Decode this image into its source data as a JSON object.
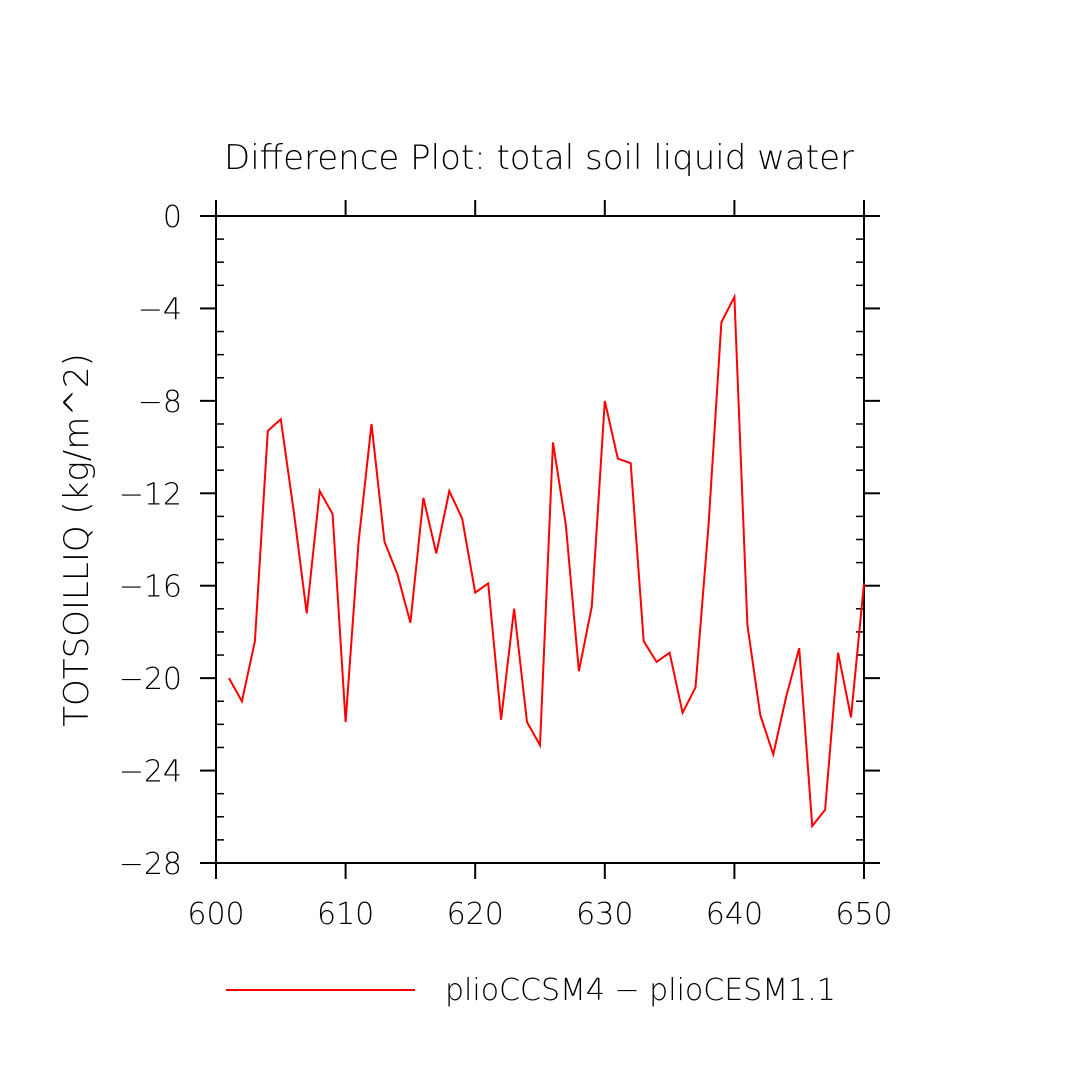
{
  "chart_data": {
    "type": "line",
    "title": "Difference Plot: total soil liquid water",
    "xlabel": "",
    "ylabel": "TOTSOILLIQ   (kg/m^2)",
    "xlim": [
      600,
      650
    ],
    "ylim": [
      -28,
      0
    ],
    "x_ticks": [
      600,
      610,
      620,
      630,
      640,
      650
    ],
    "x_tick_labels": [
      "600",
      "610",
      "620",
      "630",
      "640",
      "650"
    ],
    "y_ticks": [
      0,
      -4,
      -8,
      -12,
      -16,
      -20,
      -24,
      -28
    ],
    "y_tick_labels": [
      "0",
      "−4",
      "−8",
      "−12",
      "−16",
      "−20",
      "−24",
      "−28"
    ],
    "grid": false,
    "legend_position": "bottom",
    "series": [
      {
        "name": "plioCCSM4 − plioCESM1.1",
        "color": "#ff0000",
        "x": [
          601,
          602,
          603,
          604,
          605,
          606,
          607,
          608,
          609,
          610,
          611,
          612,
          613,
          614,
          615,
          616,
          617,
          618,
          619,
          620,
          621,
          622,
          623,
          624,
          625,
          626,
          627,
          628,
          629,
          630,
          631,
          632,
          633,
          634,
          635,
          636,
          637,
          638,
          639,
          640,
          641,
          642,
          643,
          644,
          645,
          646,
          647,
          648,
          649,
          650
        ],
        "y": [
          -20.0,
          -21.0,
          -18.4,
          -9.3,
          -8.8,
          -12.8,
          -17.2,
          -11.9,
          -12.9,
          -21.9,
          -14.1,
          -9.0,
          -14.1,
          -15.5,
          -17.6,
          -12.2,
          -14.6,
          -11.9,
          -13.1,
          -16.3,
          -15.9,
          -21.8,
          -17.0,
          -21.9,
          -22.9,
          -9.8,
          -13.4,
          -19.7,
          -16.9,
          -8.0,
          -10.5,
          -10.7,
          -18.4,
          -19.3,
          -18.9,
          -21.5,
          -20.4,
          -13.4,
          -4.6,
          -3.5,
          -17.7,
          -21.6,
          -23.3,
          -20.8,
          -18.7,
          -26.4,
          -25.7,
          -18.9,
          -21.7,
          -15.9
        ]
      }
    ]
  }
}
